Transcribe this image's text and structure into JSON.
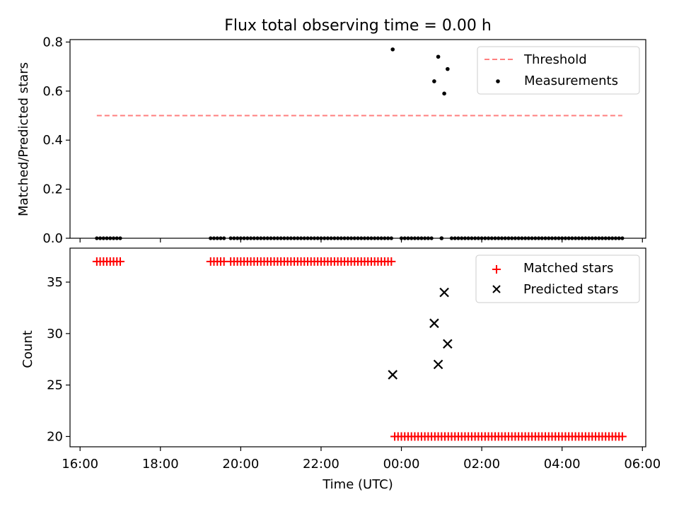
{
  "chart_data": [
    {
      "type": "scatter",
      "title": "Flux total observing time = 0.00 h",
      "xlabel": "",
      "ylabel": "Matched/Predicted stars",
      "ylim": [
        0,
        0.81
      ],
      "yticks": [
        "0.0",
        "0.2",
        "0.4",
        "0.6",
        "0.8"
      ],
      "ytick_values": [
        0,
        0.2,
        0.4,
        0.6,
        0.8
      ],
      "grid": false,
      "legend": {
        "placement": "top-right",
        "entries": [
          {
            "label": "Threshold",
            "marker": "dashed-line",
            "color": "#ff7f7f"
          },
          {
            "label": "Measurements",
            "marker": "dot",
            "color": "#000000"
          }
        ]
      },
      "threshold": {
        "name": "Threshold",
        "y": 0.5,
        "x_start": "16:25",
        "x_end": "05:30",
        "color": "#ff7f7f"
      },
      "measurement_ranges": [
        {
          "from": "16:25",
          "to": "17:00",
          "step_min": 5,
          "y": 0.0
        },
        {
          "from": "19:15",
          "to": "19:35",
          "step_min": 5,
          "y": 0.0
        },
        {
          "from": "19:45",
          "to": "23:45",
          "step_min": 5,
          "y": 0.0
        },
        {
          "from": "00:00",
          "to": "00:45",
          "step_min": 5,
          "y": 0.0
        },
        {
          "from": "01:15",
          "to": "05:30",
          "step_min": 5,
          "y": 0.0
        }
      ],
      "measurements": [
        {
          "x": "23:47",
          "y": 0.77
        },
        {
          "x": "00:49",
          "y": 0.64
        },
        {
          "x": "00:55",
          "y": 0.74
        },
        {
          "x": "01:00",
          "y": 0.0
        },
        {
          "x": "01:04",
          "y": 0.59
        },
        {
          "x": "01:09",
          "y": 0.69
        }
      ],
      "colors": {
        "measurements": "#000000",
        "threshold": "#ff7f7f"
      }
    },
    {
      "type": "scatter",
      "title": "",
      "xlabel": "Time (UTC)",
      "ylabel": "Count",
      "ylim": [
        19,
        38.3
      ],
      "yticks": [
        "20",
        "25",
        "30",
        "35"
      ],
      "ytick_values": [
        20,
        25,
        30,
        35
      ],
      "xlim": [
        "15:45",
        "06:05"
      ],
      "xticks": [
        "16:00",
        "18:00",
        "20:00",
        "22:00",
        "00:00",
        "02:00",
        "04:00",
        "06:00"
      ],
      "grid": false,
      "legend": {
        "placement": "top-right",
        "entries": [
          {
            "label": "Matched stars",
            "marker": "plus",
            "color": "#ff0000"
          },
          {
            "label": "Predicted stars",
            "marker": "x",
            "color": "#000000"
          }
        ]
      },
      "matched_stars": [
        {
          "from": "16:25",
          "to": "17:00",
          "step_min": 5,
          "y": 37
        },
        {
          "from": "19:15",
          "to": "19:35",
          "step_min": 5,
          "y": 37
        },
        {
          "from": "19:45",
          "to": "23:45",
          "step_min": 5,
          "y": 37
        },
        {
          "from": "23:50",
          "to": "05:30",
          "step_min": 5,
          "y": 20
        }
      ],
      "predicted_stars": [
        {
          "x": "23:47",
          "y": 26
        },
        {
          "x": "00:49",
          "y": 31
        },
        {
          "x": "00:55",
          "y": 27
        },
        {
          "x": "01:04",
          "y": 34
        },
        {
          "x": "01:09",
          "y": 29
        }
      ],
      "colors": {
        "matched": "#ff0000",
        "predicted": "#000000"
      }
    }
  ]
}
